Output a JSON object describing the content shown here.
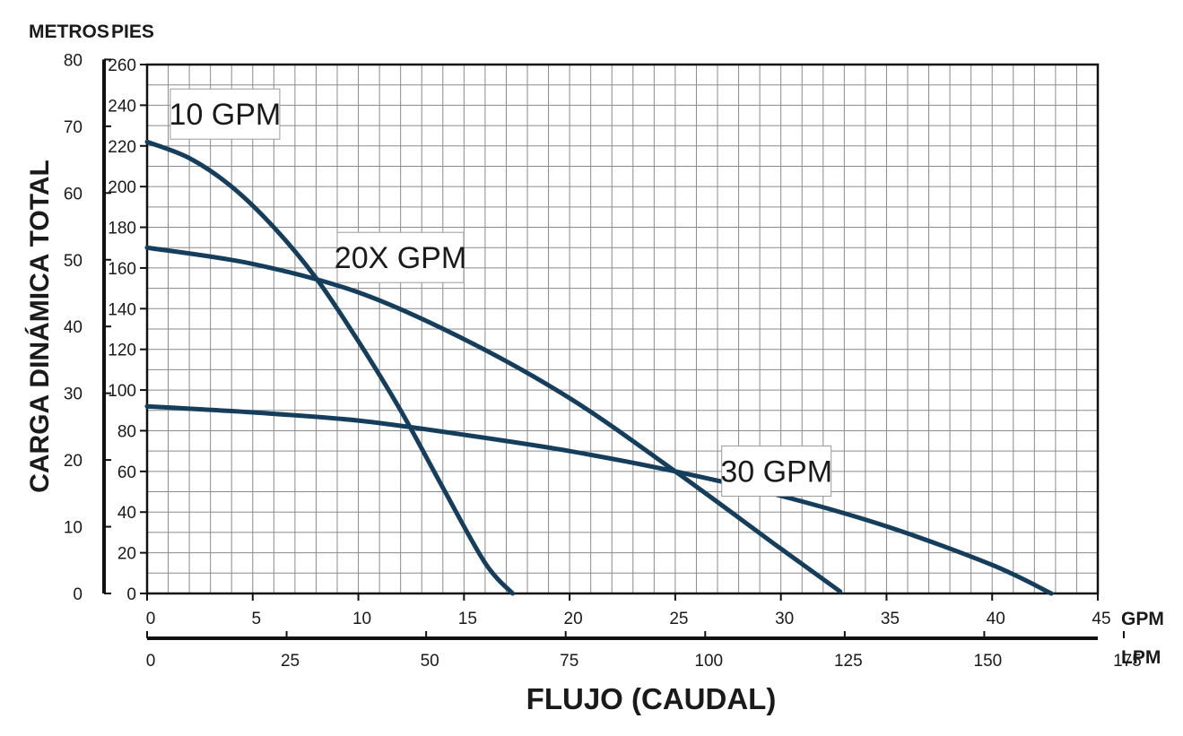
{
  "chart_data": {
    "type": "line",
    "title": "",
    "xlabel": "FLUJO (CAUDAL)",
    "ylabel": "CARGA DINÁMICA TOTAL",
    "x_units": {
      "primary": "GPM",
      "secondary": "LPM"
    },
    "y_units": {
      "primary": "PIES",
      "secondary": "METROS"
    },
    "xlim": [
      0,
      45
    ],
    "ylim": [
      0,
      260
    ],
    "x_ticks_gpm": [
      "0",
      "5",
      "10",
      "15",
      "20",
      "25",
      "30",
      "35",
      "40",
      "45"
    ],
    "x_ticks_lpm": [
      "0",
      "25",
      "50",
      "75",
      "100",
      "125",
      "150",
      "175"
    ],
    "y_ticks_feet": [
      "0",
      "20",
      "40",
      "60",
      "80",
      "100",
      "120",
      "140",
      "160",
      "180",
      "200",
      "220",
      "240",
      "260"
    ],
    "y_ticks_meters": [
      "0",
      "10",
      "20",
      "30",
      "40",
      "50",
      "60",
      "70",
      "80"
    ],
    "grid": true,
    "series": [
      {
        "name": "10 GPM",
        "color": "#153e5c",
        "x": [
          0,
          2,
          4,
          6,
          8,
          10,
          12,
          14,
          16,
          17.3
        ],
        "y": [
          222,
          214,
          200,
          180,
          155,
          124,
          90,
          52,
          15,
          0
        ]
      },
      {
        "name": "20X GPM",
        "color": "#153e5c",
        "x": [
          0,
          5,
          10,
          15,
          20,
          25,
          30,
          32.8
        ],
        "y": [
          170,
          162,
          148,
          125,
          96,
          60,
          22,
          1
        ]
      },
      {
        "name": "30 GPM",
        "color": "#153e5c",
        "x": [
          0,
          5,
          10,
          15,
          20,
          25,
          30,
          35,
          40,
          42.8
        ],
        "y": [
          92,
          89,
          85,
          78,
          70,
          60,
          48,
          33,
          14,
          0
        ]
      }
    ]
  }
}
